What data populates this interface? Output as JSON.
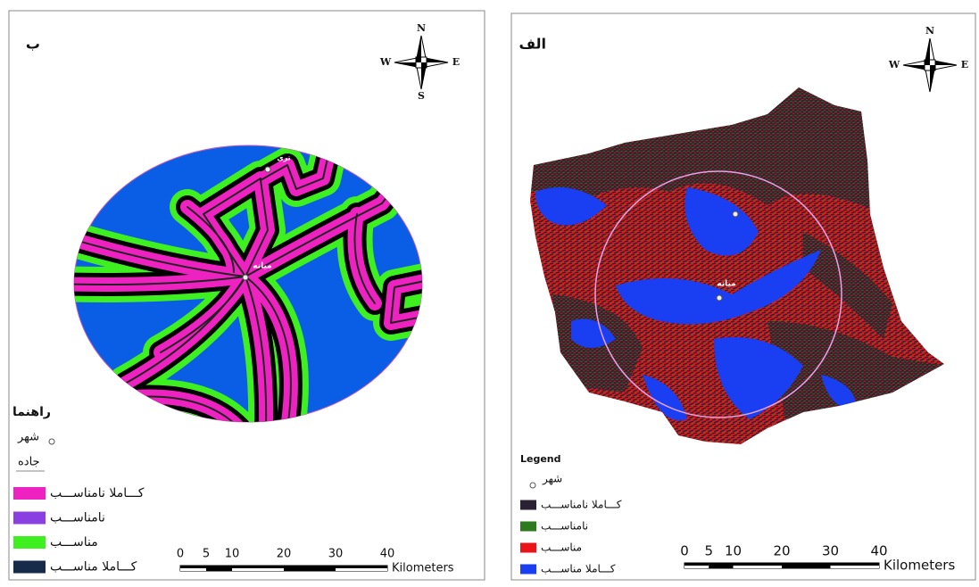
{
  "panels": [
    {
      "label": "ب",
      "compass": {
        "n": "N",
        "w": "W",
        "e": "E",
        "s": "S"
      },
      "cities": [
        "تری",
        "میانه"
      ],
      "legend": {
        "title": "راهنما",
        "city": "شهر",
        "road": "جاده",
        "items": [
          {
            "name": "کـــاملا نامناســـب",
            "color": "#ee22c0"
          },
          {
            "name": "نامناســـب",
            "color": "#8a3fe0"
          },
          {
            "name": "مناســـب",
            "color": "#3ff020"
          },
          {
            "name": "کـــاملا مناســـب",
            "color": "#162a4a"
          }
        ]
      },
      "scale": {
        "ticks": [
          0,
          5,
          10,
          20,
          30,
          40
        ],
        "unit": "Kilometers"
      }
    },
    {
      "label": "الف",
      "compass": {
        "n": "N",
        "w": "W",
        "e": "E"
      },
      "cities": [
        "میانه"
      ],
      "legend": {
        "title": "Legend",
        "city": "شهر",
        "items": [
          {
            "name": "کـــاملا نامناســـب",
            "color": "#2a2232"
          },
          {
            "name": "نامناســـب",
            "color": "#2e7a1e"
          },
          {
            "name": "مناســـب",
            "color": "#e8141a"
          },
          {
            "name": "کـــاملا مناســـب",
            "color": "#1a3ef2"
          }
        ]
      },
      "scale": {
        "ticks": [
          0,
          5,
          10,
          20,
          30,
          40
        ],
        "unit": "Kilometers"
      }
    }
  ]
}
